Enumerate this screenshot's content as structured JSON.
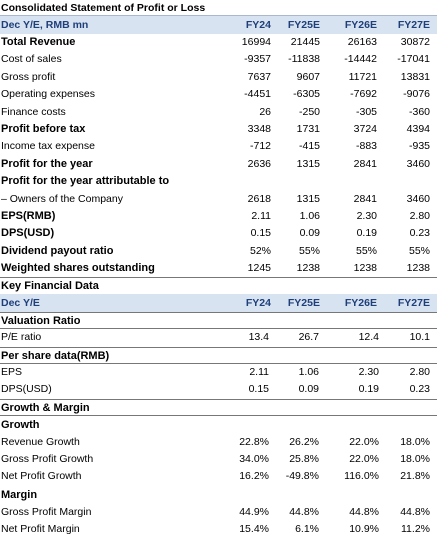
{
  "pl": {
    "title": "Consolidated Statement of Profit or Loss",
    "header": {
      "label": "Dec Y/E, RMB mn",
      "cols": [
        "FY24",
        "FY25E",
        "FY26E",
        "FY27E"
      ]
    },
    "rows": [
      {
        "label": "Total Revenue",
        "vals": [
          "16994",
          "21445",
          "26163",
          "30872"
        ],
        "bold": true
      },
      {
        "label": "Cost of sales",
        "vals": [
          "-9357",
          "-11838",
          "-14442",
          "-17041"
        ],
        "bold": false
      },
      {
        "label": "Gross profit",
        "vals": [
          "7637",
          "9607",
          "11721",
          "13831"
        ],
        "bold": false
      },
      {
        "label": "Operating expenses",
        "vals": [
          "-4451",
          "-6305",
          "-7692",
          "-9076"
        ],
        "bold": false
      },
      {
        "label": "Finance costs",
        "vals": [
          "26",
          "-250",
          "-305",
          "-360"
        ],
        "bold": false
      },
      {
        "label": "Profit before tax",
        "vals": [
          "3348",
          "1731",
          "3724",
          "4394"
        ],
        "bold": true
      },
      {
        "label": "Income tax expense",
        "vals": [
          "-712",
          "-415",
          "-883",
          "-935"
        ],
        "bold": false
      },
      {
        "label": "Profit for the year",
        "vals": [
          "2636",
          "1315",
          "2841",
          "3460"
        ],
        "bold": true
      },
      {
        "label": "Profit for the year attributable to",
        "vals": [
          "",
          "",
          "",
          ""
        ],
        "bold": true
      },
      {
        "label": "– Owners of the Company",
        "vals": [
          "2618",
          "1315",
          "2841",
          "3460"
        ],
        "bold": false
      },
      {
        "label": "EPS(RMB)",
        "vals": [
          "2.11",
          "1.06",
          "2.30",
          "2.80"
        ],
        "bold": true
      },
      {
        "label": "DPS(USD)",
        "vals": [
          "0.15",
          "0.09",
          "0.19",
          "0.23"
        ],
        "bold": true
      },
      {
        "label": "Dividend payout ratio",
        "vals": [
          "52%",
          "55%",
          "55%",
          "55%"
        ],
        "bold": true
      },
      {
        "label": "Weighted shares outstanding",
        "vals": [
          "1245",
          "1238",
          "1238",
          "1238"
        ],
        "bold": true
      }
    ]
  },
  "kfd": {
    "title": "Key Financial Data",
    "header": {
      "label": "Dec Y/E",
      "cols": [
        "FY24",
        "FY25E",
        "FY26E",
        "FY27E"
      ]
    },
    "valuation": {
      "title": "Valuation Ratio",
      "rows": [
        {
          "label": "P/E ratio",
          "vals": [
            "13.4",
            "26.7",
            "12.4",
            "10.1"
          ]
        }
      ]
    },
    "per_share": {
      "title": "Per share data(RMB)",
      "rows": [
        {
          "label": "EPS",
          "vals": [
            "2.11",
            "1.06",
            "2.30",
            "2.80"
          ]
        },
        {
          "label": "DPS(USD)",
          "vals": [
            "0.15",
            "0.09",
            "0.19",
            "0.23"
          ]
        }
      ]
    },
    "growth_margin": {
      "title": "Growth & Margin"
    },
    "growth": {
      "title": "Growth",
      "rows": [
        {
          "label": "Revenue Growth",
          "vals": [
            "22.8%",
            "26.2%",
            "22.0%",
            "18.0%"
          ]
        },
        {
          "label": "Gross Profit Growth",
          "vals": [
            "34.0%",
            "25.8%",
            "22.0%",
            "18.0%"
          ]
        },
        {
          "label": "Net Profit Growth",
          "vals": [
            "16.2%",
            "-49.8%",
            "116.0%",
            "21.8%"
          ]
        }
      ]
    },
    "margin": {
      "title": "Margin",
      "rows": [
        {
          "label": "Gross Profit Margin",
          "vals": [
            "44.9%",
            "44.8%",
            "44.8%",
            "44.8%"
          ]
        },
        {
          "label": "Net Profit Margin",
          "vals": [
            "15.4%",
            "6.1%",
            "10.9%",
            "11.2%"
          ]
        }
      ]
    }
  }
}
